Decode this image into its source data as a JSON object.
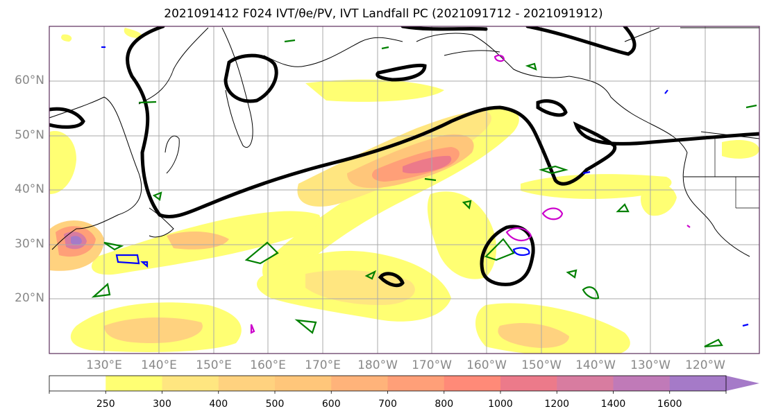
{
  "title": "2021091412 F024 IVT/θe/PV, IVT Landfall PC (2021091712 - 2021091912)",
  "latitude_labels": [
    "60°N",
    "50°N",
    "40°N",
    "30°N",
    "20°N"
  ],
  "longitude_labels": [
    "130°E",
    "140°E",
    "150°E",
    "160°E",
    "170°E",
    "180°W",
    "170°W",
    "160°W",
    "150°W",
    "140°W",
    "130°W",
    "120°W"
  ],
  "colorbar": {
    "ticks": [
      "250",
      "300",
      "400",
      "500",
      "600",
      "700",
      "800",
      "1000",
      "1200",
      "1400",
      "1600"
    ],
    "colors": [
      "#ffffff",
      "#ffff73",
      "#ffe680",
      "#ffd27f",
      "#ffc67a",
      "#ffb37a",
      "#ff9f78",
      "#ff8a78",
      "#ec7a8a",
      "#d87ca0",
      "#c07ab8",
      "#a57ac8"
    ]
  },
  "colors": {
    "ivt_contour": "#000000",
    "theta_e": "#008000",
    "pv_blue": "#0000ff",
    "pv_magenta": "#cc00cc",
    "grid": "#a9a9a9",
    "frame": "#5a2d5a"
  }
}
